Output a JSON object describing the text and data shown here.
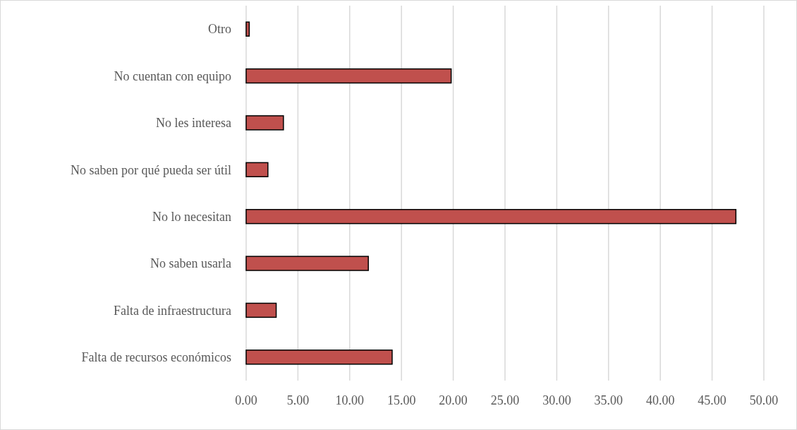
{
  "chart_data": {
    "type": "bar",
    "orientation": "horizontal",
    "categories": [
      "Otro",
      "No cuentan con equipo",
      "No les interesa",
      "No saben por qué pueda ser útil",
      "No lo necesitan",
      "No saben usarla",
      "Falta de infraestructura",
      "Falta de recursos económicos"
    ],
    "values": [
      0.3,
      19.8,
      3.6,
      2.1,
      47.3,
      11.8,
      2.9,
      14.1
    ],
    "color": "#c0504d",
    "xlim": [
      0,
      50
    ],
    "xticks": [
      {
        "value": 0,
        "label": "0.00"
      },
      {
        "value": 5,
        "label": "5.00"
      },
      {
        "value": 10,
        "label": "10.00"
      },
      {
        "value": 15,
        "label": "15.00"
      },
      {
        "value": 20,
        "label": "20.00"
      },
      {
        "value": 25,
        "label": "25.00"
      },
      {
        "value": 30,
        "label": "30.00"
      },
      {
        "value": 35,
        "label": "35.00"
      },
      {
        "value": 40,
        "label": "40.00"
      },
      {
        "value": 45,
        "label": "45.00"
      },
      {
        "value": 50,
        "label": "50.00"
      }
    ],
    "grid": "x"
  }
}
